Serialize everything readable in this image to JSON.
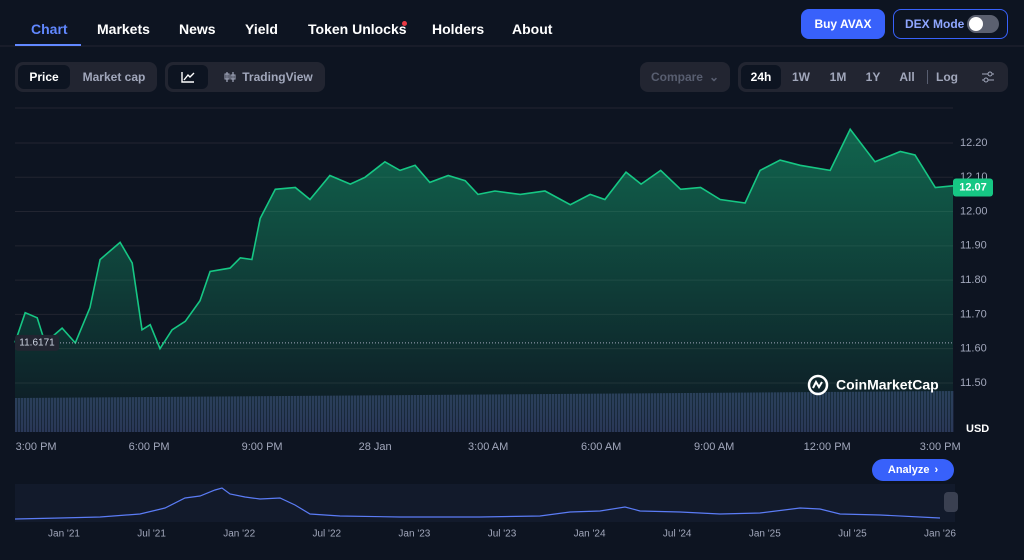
{
  "nav": {
    "tabs": [
      "Chart",
      "Markets",
      "News",
      "Yield",
      "Token Unlocks",
      "Holders",
      "About"
    ],
    "buy": "Buy AVAX",
    "dex": "DEX Mode"
  },
  "controls": {
    "price": "Price",
    "market_cap": "Market cap",
    "tradingview": "TradingView",
    "compare": "Compare",
    "ranges": [
      "24h",
      "1W",
      "1M",
      "1Y",
      "All"
    ],
    "log": "Log"
  },
  "chart_data": {
    "type": "line",
    "color": "#16c784",
    "x": [
      -0.56,
      -0.29,
      0.03,
      0.24,
      0.69,
      1.04,
      1.43,
      1.7,
      2.23,
      2.55,
      2.81,
      3.03,
      3.29,
      3.61,
      3.96,
      4.35,
      4.62,
      5.15,
      5.42,
      5.73,
      5.95,
      6.35,
      6.88,
      7.27,
      7.8,
      8.34,
      8.73,
      9.26,
      9.66,
      10.06,
      10.45,
      10.94,
      11.39,
      11.73,
      12.18,
      12.85,
      13.51,
      14.18,
      14.71,
      15.1,
      15.66,
      16.06,
      16.58,
      17.11,
      17.64,
      18.16,
      18.82,
      19.22,
      19.75,
      20.28,
      21.08,
      21.61,
      22.27,
      22.94,
      23.33,
      23.87,
      24.34
    ],
    "values": [
      11.618,
      11.705,
      11.69,
      11.617,
      11.66,
      11.617,
      11.72,
      11.86,
      11.91,
      11.85,
      11.655,
      11.67,
      11.6,
      11.655,
      11.68,
      11.74,
      11.825,
      11.835,
      11.865,
      11.86,
      11.98,
      12.065,
      12.07,
      12.035,
      12.105,
      12.08,
      12.1,
      12.145,
      12.12,
      12.135,
      12.085,
      12.105,
      12.09,
      12.05,
      12.06,
      12.05,
      12.06,
      12.02,
      12.05,
      12.035,
      12.115,
      12.08,
      12.12,
      12.065,
      12.07,
      12.035,
      12.025,
      12.12,
      12.15,
      12.135,
      12.12,
      12.24,
      12.145,
      12.175,
      12.165,
      12.07,
      12.075
    ],
    "xlim": [
      -0.56,
      24.34
    ],
    "xticks": [
      {
        "value": 0,
        "label": "3:00 PM"
      },
      {
        "value": 3,
        "label": "6:00 PM"
      },
      {
        "value": 6,
        "label": "9:00 PM"
      },
      {
        "value": 9,
        "label": "28 Jan"
      },
      {
        "value": 12,
        "label": "3:00 AM"
      },
      {
        "value": 15,
        "label": "6:00 AM"
      },
      {
        "value": 18,
        "label": "9:00 AM"
      },
      {
        "value": 21,
        "label": "12:00 PM"
      },
      {
        "value": 24,
        "label": "3:00 PM"
      }
    ],
    "ylim": [
      11.357,
      12.302
    ],
    "yticks": [
      {
        "value": 11.5,
        "label": "11.50"
      },
      {
        "value": 11.6,
        "label": "11.60"
      },
      {
        "value": 11.7,
        "label": "11.70"
      },
      {
        "value": 11.8,
        "label": "11.80"
      },
      {
        "value": 11.9,
        "label": "11.90"
      },
      {
        "value": 12.0,
        "label": "12.00"
      },
      {
        "value": 12.1,
        "label": "12.10"
      },
      {
        "value": 12.2,
        "label": "12.20"
      }
    ],
    "grid": true,
    "unit": "USD",
    "last": 12.07,
    "baseline": 11.6171,
    "watermark": "CoinMarketCap"
  },
  "analyze": "Analyze",
  "navigator": {
    "labels": [
      "Jan '21",
      "Jul '21",
      "Jan '22",
      "Jul '22",
      "Jan '23",
      "Jul '23",
      "Jan '24",
      "Jul '24",
      "Jan '25",
      "Jul '25",
      "Jan '26"
    ]
  }
}
